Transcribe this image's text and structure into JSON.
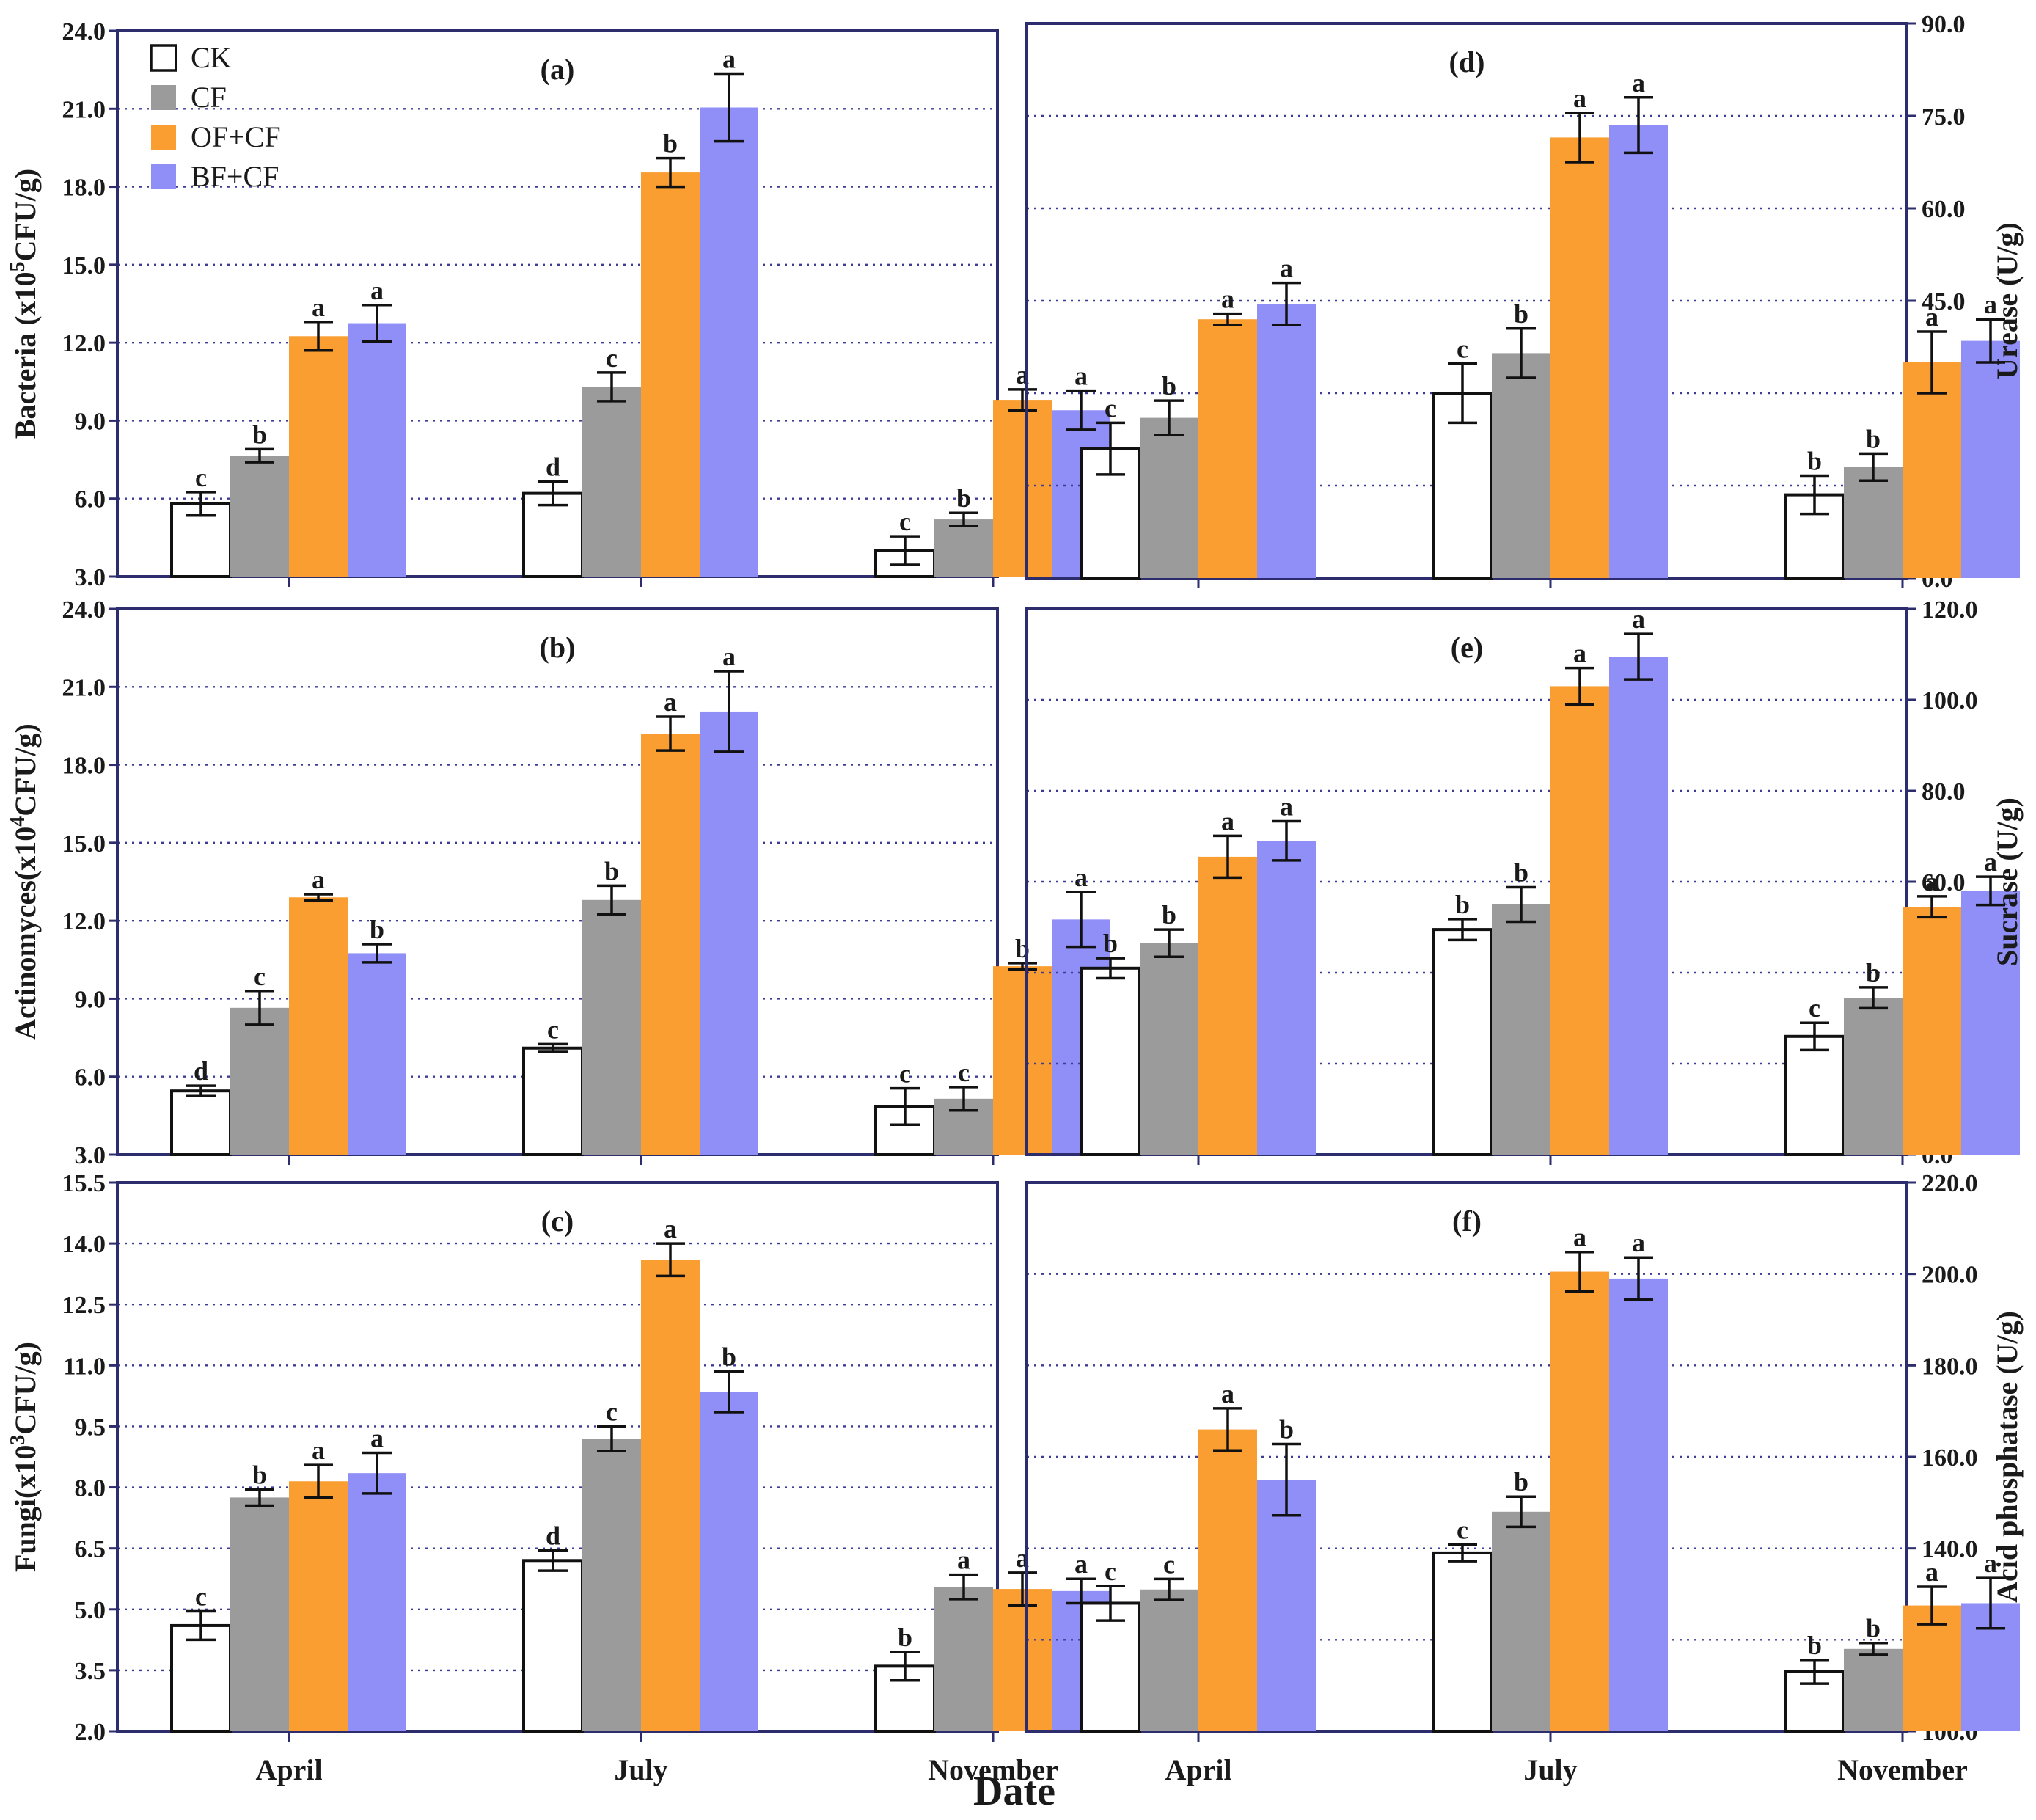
{
  "figure": {
    "x_axis_title": "Date",
    "colors": {
      "CK": "#ffffff",
      "CF": "#9b9b9b",
      "OF+CF": "#fa9e32",
      "BF+CF": "#8f8ff7",
      "frame": "#2d2d6e",
      "grid": "#3c3c96"
    }
  },
  "legend": [
    {
      "label": "CK",
      "key": "CK"
    },
    {
      "label": "CF",
      "key": "CF"
    },
    {
      "label": "OF+CF",
      "key": "OF+CF"
    },
    {
      "label": "BF+CF",
      "key": "BF+CF"
    }
  ],
  "chart_data": [
    {
      "id": "a",
      "panel_label": "(a)",
      "type": "bar",
      "ylabel": "Bacteria (x10<sup>5</sup>CFU/g)",
      "ylabel_plain": "Bacteria (x10",
      "ylabel_sup": "5",
      "ylabel_tail": "CFU/g)",
      "axis_side": "left",
      "ylim": [
        3,
        24
      ],
      "step": 3,
      "tick_decimals": 1,
      "categories": [
        "April",
        "July",
        "November"
      ],
      "series": [
        {
          "name": "CK",
          "values": [
            5.8,
            6.2,
            4.0
          ],
          "errors": [
            0.45,
            0.45,
            0.55
          ],
          "letters": [
            "c",
            "d",
            "c"
          ]
        },
        {
          "name": "CF",
          "values": [
            7.65,
            10.3,
            5.2
          ],
          "errors": [
            0.25,
            0.55,
            0.25
          ],
          "letters": [
            "b",
            "c",
            "b"
          ]
        },
        {
          "name": "OF+CF",
          "values": [
            12.25,
            18.55,
            9.8
          ],
          "errors": [
            0.55,
            0.55,
            0.4
          ],
          "letters": [
            "a",
            "b",
            "a"
          ]
        },
        {
          "name": "BF+CF",
          "values": [
            12.75,
            21.05,
            9.4
          ],
          "errors": [
            0.7,
            1.3,
            0.75
          ],
          "letters": [
            "a",
            "a",
            "a"
          ]
        }
      ]
    },
    {
      "id": "b",
      "panel_label": "(b)",
      "type": "bar",
      "ylabel_plain": "Actinomyces(x10",
      "ylabel_sup": "4",
      "ylabel_tail": "CFU/g)",
      "axis_side": "left",
      "ylim": [
        3,
        24
      ],
      "step": 3,
      "tick_decimals": 1,
      "categories": [
        "April",
        "July",
        "November"
      ],
      "series": [
        {
          "name": "CK",
          "values": [
            5.45,
            7.1,
            4.85
          ],
          "errors": [
            0.2,
            0.15,
            0.7
          ],
          "letters": [
            "d",
            "c",
            "c"
          ]
        },
        {
          "name": "CF",
          "values": [
            8.65,
            12.8,
            5.15
          ],
          "errors": [
            0.65,
            0.55,
            0.45
          ],
          "letters": [
            "c",
            "b",
            "c"
          ]
        },
        {
          "name": "OF+CF",
          "values": [
            12.9,
            19.2,
            10.25
          ],
          "errors": [
            0.12,
            0.65,
            0.12
          ],
          "letters": [
            "a",
            "a",
            "b"
          ]
        },
        {
          "name": "BF+CF",
          "values": [
            10.75,
            20.05,
            12.05
          ],
          "errors": [
            0.35,
            1.55,
            1.05
          ],
          "letters": [
            "b",
            "a",
            "a"
          ]
        }
      ]
    },
    {
      "id": "c",
      "panel_label": "(c)",
      "type": "bar",
      "ylabel_plain": "Fungi(x10",
      "ylabel_sup": "3",
      "ylabel_tail": "CFU/g)",
      "axis_side": "left",
      "ylim": [
        2,
        15.5
      ],
      "step": 1.5,
      "tick_decimals": 1,
      "categories": [
        "April",
        "July",
        "November"
      ],
      "series": [
        {
          "name": "CK",
          "values": [
            4.6,
            6.2,
            3.6
          ],
          "errors": [
            0.35,
            0.25,
            0.35
          ],
          "letters": [
            "c",
            "d",
            "b"
          ]
        },
        {
          "name": "CF",
          "values": [
            7.75,
            9.2,
            5.55
          ],
          "errors": [
            0.2,
            0.3,
            0.3
          ],
          "letters": [
            "b",
            "c",
            "a"
          ]
        },
        {
          "name": "OF+CF",
          "values": [
            8.15,
            13.6,
            5.5
          ],
          "errors": [
            0.4,
            0.4,
            0.4
          ],
          "letters": [
            "a",
            "a",
            "a"
          ]
        },
        {
          "name": "BF+CF",
          "values": [
            8.35,
            10.35,
            5.45
          ],
          "errors": [
            0.5,
            0.5,
            0.3
          ],
          "letters": [
            "a",
            "b",
            "a"
          ]
        }
      ]
    },
    {
      "id": "d",
      "panel_label": "(d)",
      "type": "bar",
      "ylabel_plain": "Urease (U/g)",
      "ylabel_sup": "",
      "ylabel_tail": "",
      "axis_side": "right",
      "ylim": [
        0,
        90
      ],
      "step": 15,
      "tick_decimals": 1,
      "categories": [
        "April",
        "July",
        "November"
      ],
      "series": [
        {
          "name": "CK",
          "values": [
            21,
            30,
            13.5
          ],
          "errors": [
            4.2,
            4.8,
            3.1
          ],
          "letters": [
            "c",
            "c",
            "b"
          ]
        },
        {
          "name": "CF",
          "values": [
            26,
            36.5,
            18
          ],
          "errors": [
            2.8,
            4.0,
            2.2
          ],
          "letters": [
            "b",
            "b",
            "b"
          ]
        },
        {
          "name": "OF+CF",
          "values": [
            42,
            71.5,
            35
          ],
          "errors": [
            0.9,
            4.0,
            5.0
          ],
          "letters": [
            "a",
            "a",
            "a"
          ]
        },
        {
          "name": "BF+CF",
          "values": [
            44.5,
            73.5,
            38.5
          ],
          "errors": [
            3.4,
            4.5,
            3.5
          ],
          "letters": [
            "a",
            "a",
            "a"
          ]
        }
      ]
    },
    {
      "id": "e",
      "panel_label": "(e)",
      "type": "bar",
      "ylabel_plain": "Sucrase (U/g)",
      "ylabel_sup": "",
      "ylabel_tail": "",
      "axis_side": "right",
      "ylim": [
        0,
        120
      ],
      "step": 20,
      "tick_decimals": 1,
      "categories": [
        "April",
        "July",
        "November"
      ],
      "series": [
        {
          "name": "CK",
          "values": [
            41,
            49.5,
            26
          ],
          "errors": [
            2.2,
            2.3,
            3.0
          ],
          "letters": [
            "b",
            "b",
            "c"
          ]
        },
        {
          "name": "CF",
          "values": [
            46.5,
            55,
            34.5
          ],
          "errors": [
            3.0,
            3.8,
            2.3
          ],
          "letters": [
            "b",
            "b",
            "b"
          ]
        },
        {
          "name": "OF+CF",
          "values": [
            65.5,
            103,
            54.5
          ],
          "errors": [
            4.6,
            4.0,
            2.3
          ],
          "letters": [
            "a",
            "a",
            "a"
          ]
        },
        {
          "name": "BF+CF",
          "values": [
            69,
            109.5,
            58
          ],
          "errors": [
            4.3,
            5.0,
            3.1
          ],
          "letters": [
            "a",
            "a",
            "a"
          ]
        }
      ]
    },
    {
      "id": "f",
      "panel_label": "(f)",
      "type": "bar",
      "ylabel_plain": "Acid phosphatase (U/g)",
      "ylabel_sup": "",
      "ylabel_tail": "",
      "axis_side": "right",
      "ylim": [
        100,
        220
      ],
      "step": 20,
      "tick_decimals": 1,
      "categories": [
        "April",
        "July",
        "November"
      ],
      "series": [
        {
          "name": "CK",
          "values": [
            128,
            139,
            113
          ],
          "errors": [
            3.8,
            1.8,
            2.6
          ],
          "letters": [
            "c",
            "c",
            "b"
          ]
        },
        {
          "name": "CF",
          "values": [
            131,
            148,
            118
          ],
          "errors": [
            2.3,
            3.3,
            1.3
          ],
          "letters": [
            "c",
            "b",
            "b"
          ]
        },
        {
          "name": "OF+CF",
          "values": [
            166,
            200.5,
            127.5
          ],
          "errors": [
            4.6,
            4.3,
            4.1
          ],
          "letters": [
            "a",
            "a",
            "a"
          ]
        },
        {
          "name": "BF+CF",
          "values": [
            155,
            199,
            128
          ],
          "errors": [
            7.8,
            4.6,
            5.5
          ],
          "letters": [
            "b",
            "a",
            "a"
          ]
        }
      ]
    }
  ]
}
